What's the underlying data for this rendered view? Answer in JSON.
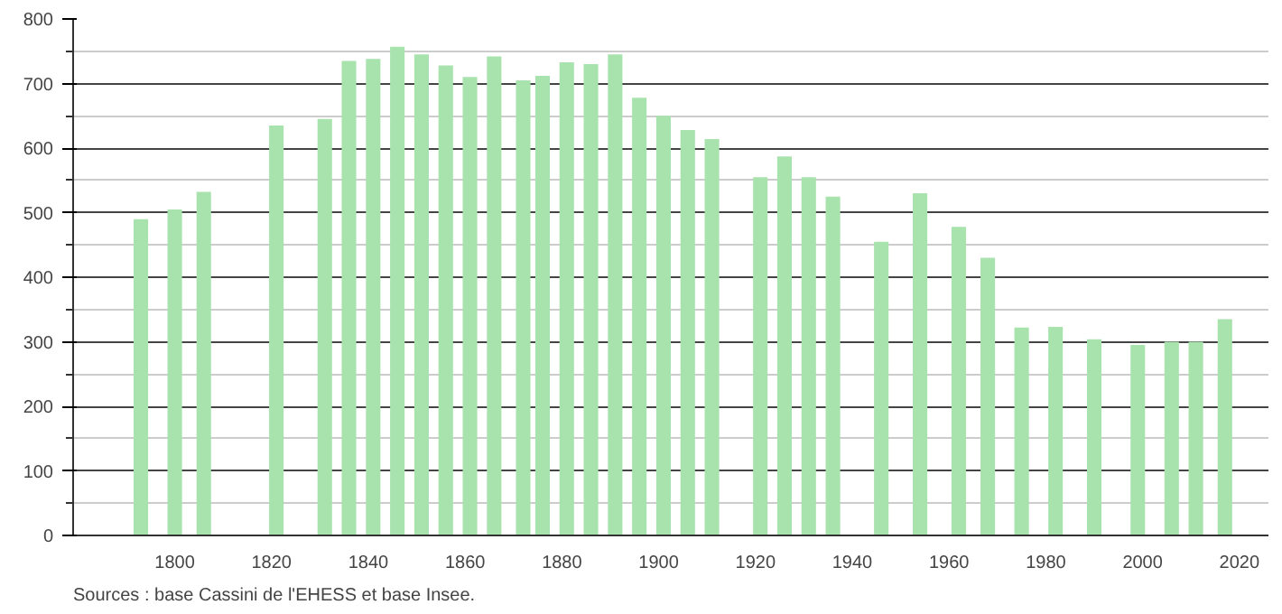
{
  "chart_data": {
    "type": "bar",
    "x": [
      1793,
      1800,
      1806,
      1821,
      1831,
      1836,
      1841,
      1846,
      1851,
      1856,
      1861,
      1866,
      1872,
      1876,
      1881,
      1886,
      1891,
      1896,
      1901,
      1906,
      1911,
      1921,
      1926,
      1931,
      1936,
      1946,
      1954,
      1962,
      1968,
      1975,
      1982,
      1990,
      1999,
      2006,
      2011,
      2017
    ],
    "values": [
      490,
      505,
      532,
      635,
      645,
      735,
      738,
      757,
      745,
      728,
      710,
      742,
      705,
      712,
      733,
      730,
      745,
      678,
      650,
      628,
      614,
      555,
      587,
      555,
      525,
      455,
      530,
      478,
      430,
      322,
      323,
      304,
      295,
      300,
      300,
      335
    ],
    "color": "#a8e2ad",
    "xlim": [
      1779,
      2026
    ],
    "xticks": [
      1800,
      1820,
      1840,
      1860,
      1880,
      1900,
      1920,
      1940,
      1960,
      1980,
      2000,
      2020
    ],
    "ylim": [
      0,
      800
    ],
    "yticks": [
      0,
      100,
      200,
      300,
      400,
      500,
      600,
      700,
      800
    ],
    "grid": "y",
    "annotations": [
      "Sources : base Cassini de l'EHESS et base Insee."
    ]
  }
}
